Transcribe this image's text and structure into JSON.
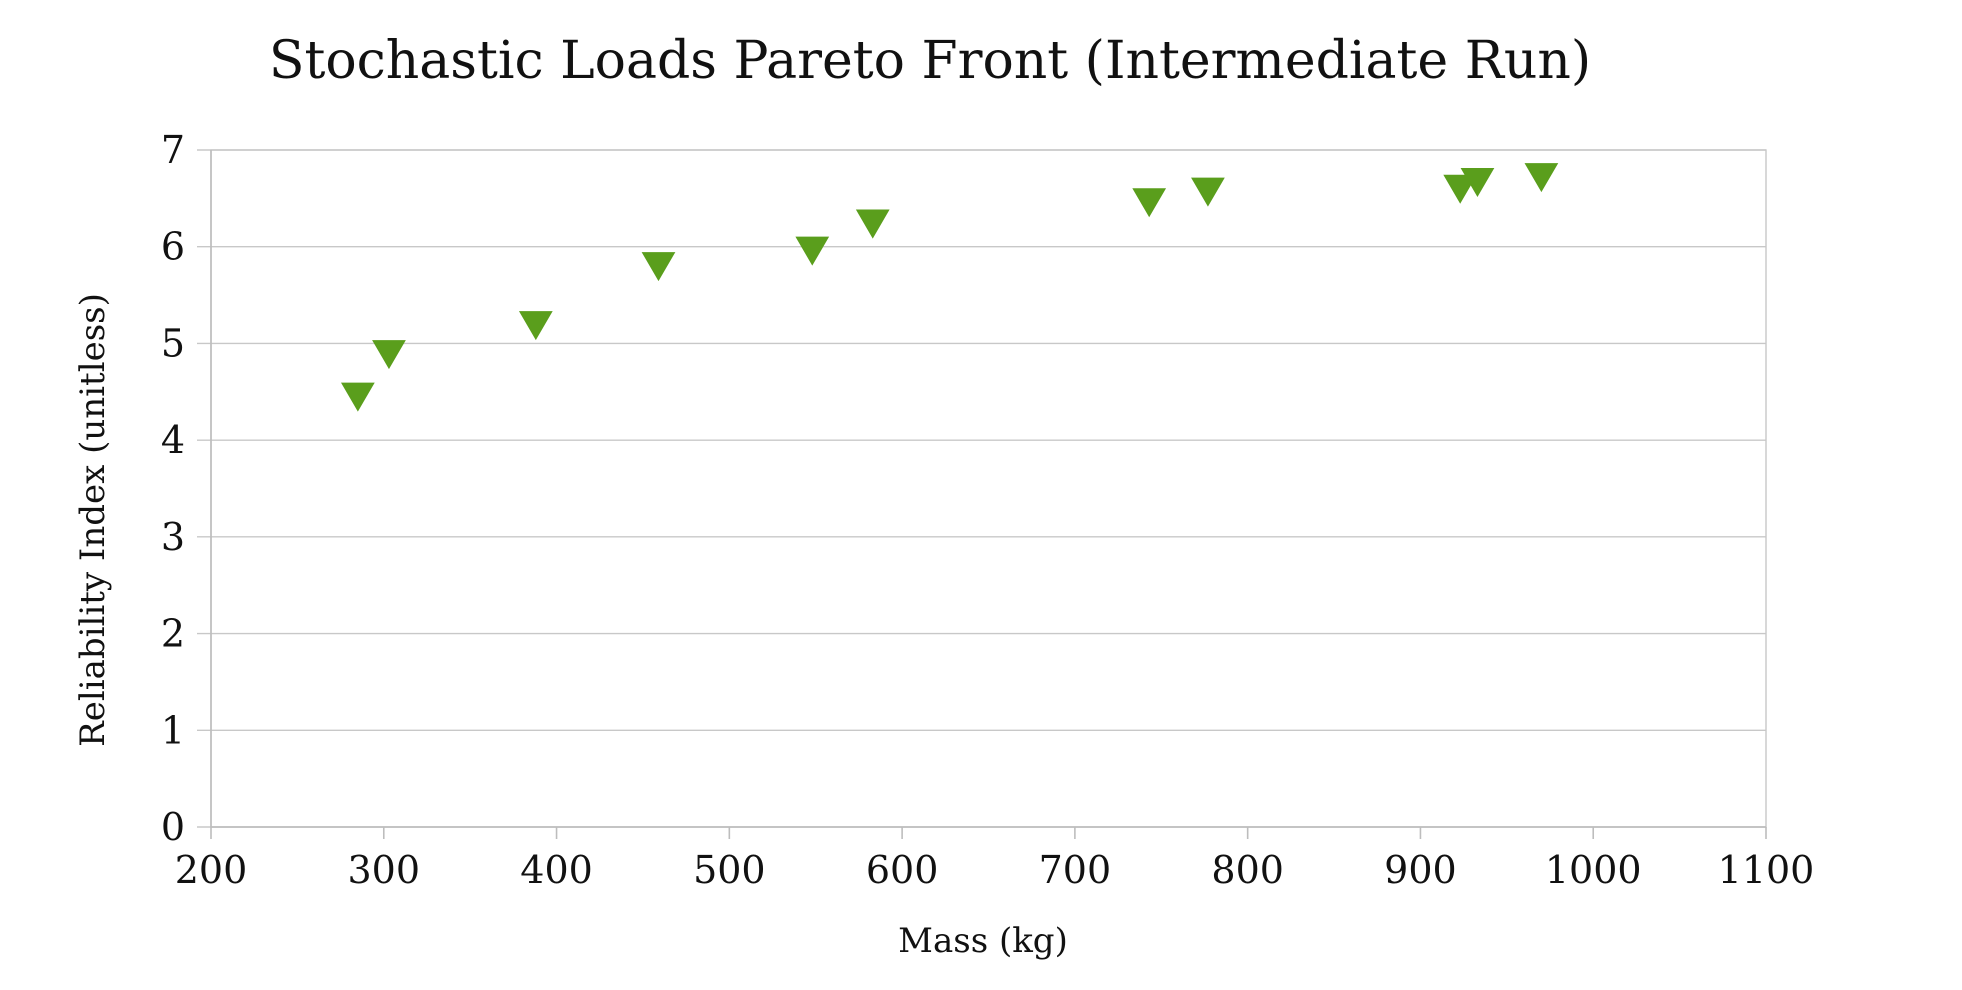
{
  "chart_data": {
    "type": "scatter",
    "title": "Stochastic Loads Pareto Front (Intermediate Run)",
    "xlabel": "Mass (kg)",
    "ylabel": "Reliability Index (unitless)",
    "xlim": [
      200,
      1100
    ],
    "ylim": [
      0,
      7
    ],
    "x_ticks": [
      "200",
      "300",
      "400",
      "500",
      "600",
      "700",
      "800",
      "900",
      "1000",
      "1100"
    ],
    "y_ticks": [
      "0",
      "1",
      "2",
      "3",
      "4",
      "5",
      "6",
      "7"
    ],
    "grid": "horizontal",
    "legend": "none",
    "marker": "down-triangle",
    "series": [
      {
        "color": "#5a9e1c",
        "points": [
          {
            "x": 285,
            "y": 4.47
          },
          {
            "x": 303,
            "y": 4.91
          },
          {
            "x": 388,
            "y": 5.21
          },
          {
            "x": 459,
            "y": 5.82
          },
          {
            "x": 548,
            "y": 5.98
          },
          {
            "x": 583,
            "y": 6.26
          },
          {
            "x": 743,
            "y": 6.48
          },
          {
            "x": 777,
            "y": 6.59
          },
          {
            "x": 923,
            "y": 6.62
          },
          {
            "x": 933,
            "y": 6.69
          },
          {
            "x": 970,
            "y": 6.74
          }
        ]
      }
    ]
  }
}
